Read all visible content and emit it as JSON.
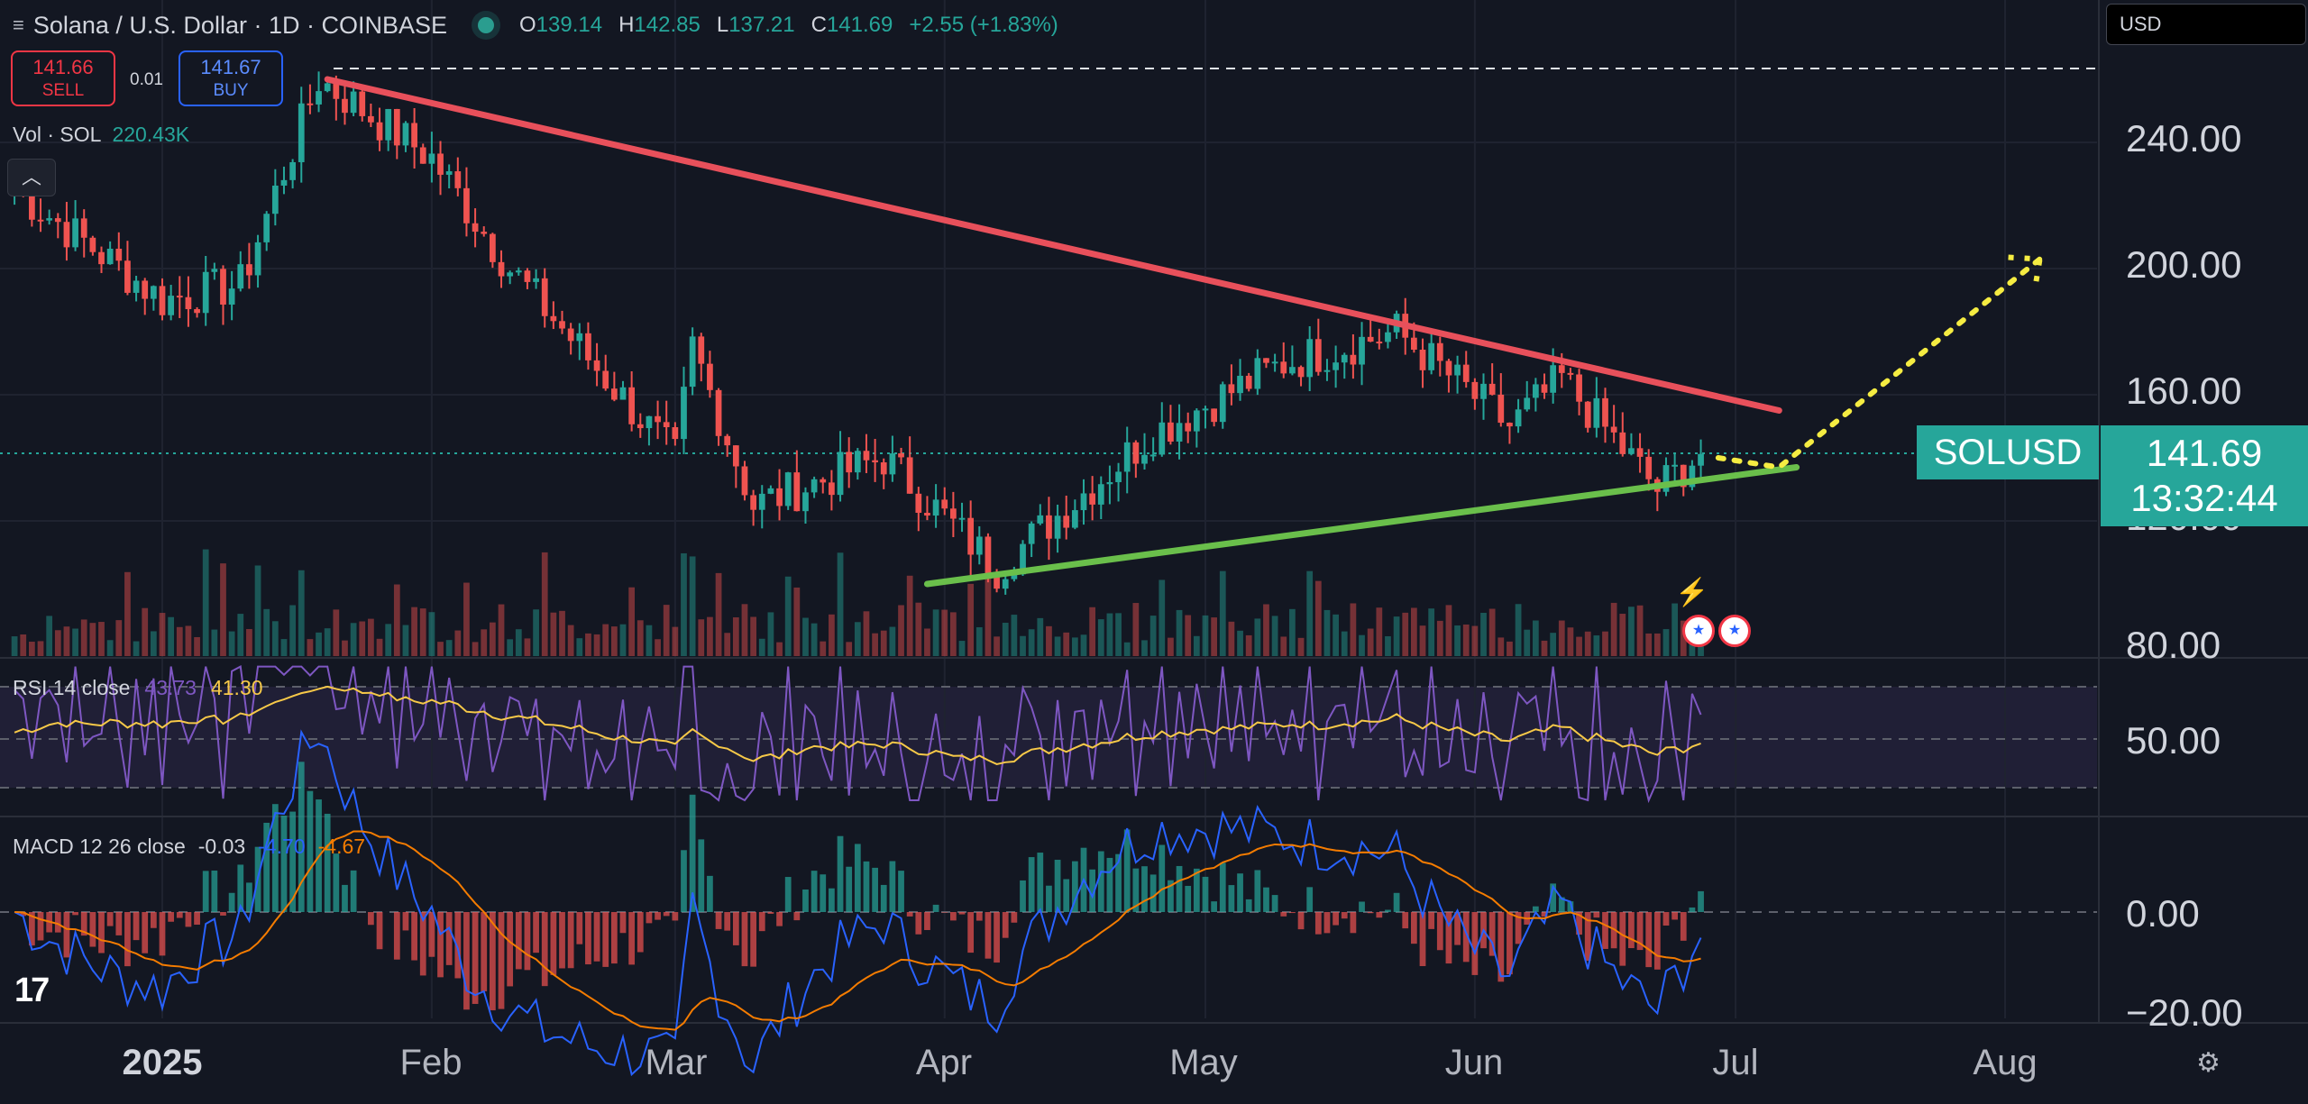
{
  "header": {
    "symbol": "Solana / U.S. Dollar · 1D · COINBASE",
    "o_label": "O",
    "o": "139.14",
    "h_label": "H",
    "h": "142.85",
    "l_label": "L",
    "l": "137.21",
    "c_label": "C",
    "c": "141.69",
    "change": "+2.55 (+1.83%)"
  },
  "trade": {
    "sell_price": "141.66",
    "sell_label": "SELL",
    "spread": "0.01",
    "buy_price": "141.67",
    "buy_label": "BUY"
  },
  "volume": {
    "label": "Vol · SOL",
    "value": "220.43K"
  },
  "currency": "USD",
  "collapse_icon": "chevron-up-icon",
  "rsi": {
    "label": "RSI 14 close",
    "value1": "43.73",
    "value2": "41.30"
  },
  "macd": {
    "label": "MACD 12 26 close",
    "value1": "-0.03",
    "value2": "-4.70",
    "value3": "-4.67"
  },
  "price_axis": [
    "240.00",
    "200.00",
    "160.00",
    "120.00",
    "80.00"
  ],
  "rsi_axis": [
    "50.00"
  ],
  "macd_axis": [
    "0.00",
    "−20.00"
  ],
  "time_axis": [
    "2025",
    "Feb",
    "Mar",
    "Apr",
    "May",
    "Jun",
    "Jul",
    "Aug"
  ],
  "last": {
    "symbol": "SOLUSD",
    "price": "141.69",
    "countdown": "13:32:44"
  },
  "colors": {
    "up": "#26a69a",
    "down": "#ef5350",
    "resistance": "#e8505b",
    "support": "#6abf4b",
    "projection": "#f5ec42"
  },
  "chart_data": {
    "type": "line",
    "title": "Solana / U.S. Dollar · 1D · COINBASE",
    "ylim": [
      80,
      260
    ],
    "approx_close_path": [
      {
        "x": "2024-12-15",
        "y": 225
      },
      {
        "x": "2025-01-01",
        "y": 190
      },
      {
        "x": "2025-01-10",
        "y": 195
      },
      {
        "x": "2025-01-19",
        "y": 260
      },
      {
        "x": "2025-02-01",
        "y": 235
      },
      {
        "x": "2025-02-10",
        "y": 200
      },
      {
        "x": "2025-03-01",
        "y": 140
      },
      {
        "x": "2025-03-03",
        "y": 175
      },
      {
        "x": "2025-03-10",
        "y": 125
      },
      {
        "x": "2025-03-25",
        "y": 140
      },
      {
        "x": "2025-04-07",
        "y": 105
      },
      {
        "x": "2025-04-25",
        "y": 148
      },
      {
        "x": "2025-05-10",
        "y": 170
      },
      {
        "x": "2025-05-23",
        "y": 180
      },
      {
        "x": "2025-06-05",
        "y": 150
      },
      {
        "x": "2025-06-11",
        "y": 165
      },
      {
        "x": "2025-06-22",
        "y": 130
      },
      {
        "x": "2025-06-27",
        "y": 141.69
      }
    ],
    "resistance_line": [
      {
        "x": "2025-01-20",
        "y": 260
      },
      {
        "x": "2025-07-06",
        "y": 155
      }
    ],
    "support_line": [
      {
        "x": "2025-03-30",
        "y": 100
      },
      {
        "x": "2025-07-08",
        "y": 137
      }
    ],
    "projection": [
      {
        "x": "2025-06-29",
        "y": 140
      },
      {
        "x": "2025-07-06",
        "y": 137
      },
      {
        "x": "2025-08-05",
        "y": 203
      }
    ],
    "rsi_ylim": [
      20,
      80
    ],
    "macd_ylim": [
      -20,
      10
    ]
  }
}
